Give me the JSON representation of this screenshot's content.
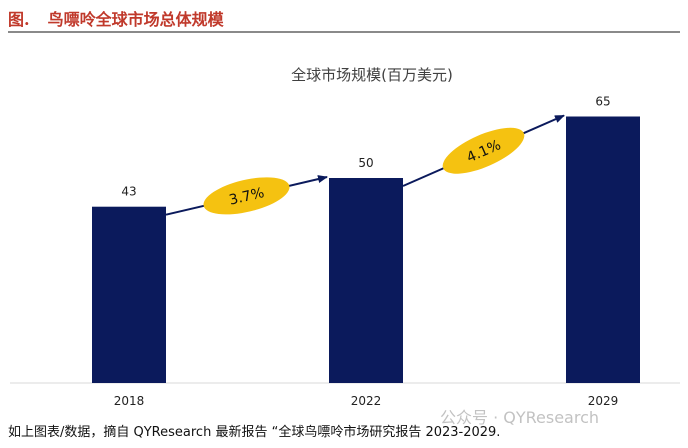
{
  "header": {
    "figure_no": "图.",
    "figure_title": "鸟嘌呤全球市场总体规模"
  },
  "colors": {
    "bar": "#0b1a5c",
    "ellipse": "#f5c211",
    "arrow": "#0b1a5c",
    "header_text": "#c0392b"
  },
  "chart_data": {
    "type": "bar",
    "title": "全球市场规模(百万美元)",
    "categories": [
      "2018",
      "2022",
      "2029"
    ],
    "values": [
      43,
      50,
      65
    ],
    "data_labels": [
      "43",
      "50",
      "65"
    ],
    "ylim": [
      0,
      70
    ],
    "grid": false,
    "legend": "none",
    "annotations": [
      {
        "text": "3.7%",
        "from": "2018",
        "to": "2022"
      },
      {
        "text": "4.1%",
        "from": "2022",
        "to": "2029"
      }
    ]
  },
  "footer": {
    "source": "如上图表/数据，摘自 QYResearch 最新报告 “全球鸟嘌呤市场研究报告 2023-2029.",
    "watermark": "公众号 · QYResearch"
  }
}
